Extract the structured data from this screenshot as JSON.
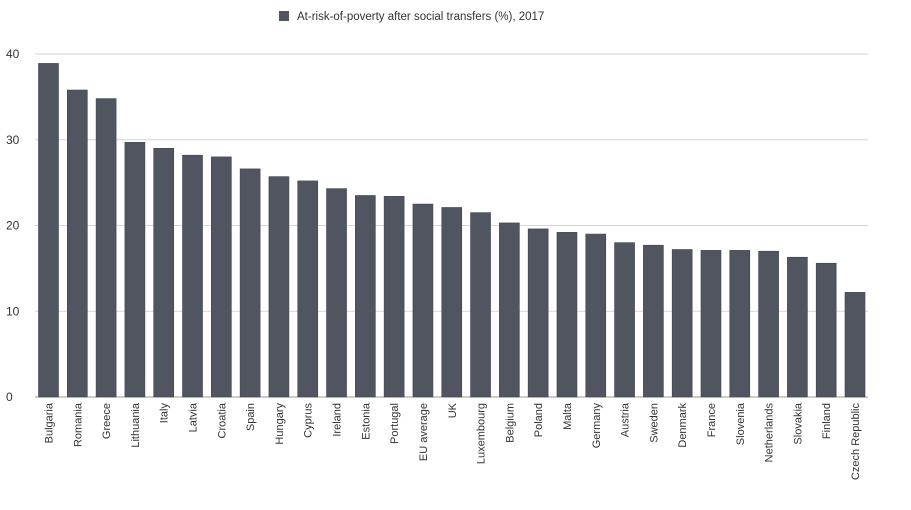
{
  "chart_data": {
    "type": "bar",
    "title": "",
    "xlabel": "",
    "ylabel": "",
    "ylim": [
      0,
      40
    ],
    "yticks": [
      0,
      10,
      20,
      30,
      40
    ],
    "grid": true,
    "legend_position": "top",
    "bar_color": "#51555f",
    "categories": [
      "Bulgaria",
      "Romania",
      "Greece",
      "Lithuania",
      "Italy",
      "Latvia",
      "Croatia",
      "Spain",
      "Hungary",
      "Cyprus",
      "Ireland",
      "Estonia",
      "Portugal",
      "EU average",
      "UK",
      "Luxembourg",
      "Belgium",
      "Poland",
      "Malta",
      "Germany",
      "Austria",
      "Sweden",
      "Denmark",
      "France",
      "Slovenia",
      "Netherlands",
      "Slovakia",
      "Finland",
      "Czech Republic"
    ],
    "series": [
      {
        "name": "At-risk-of-poverty after social transfers (%), 2017",
        "values": [
          38.9,
          35.8,
          34.8,
          29.7,
          29.0,
          28.2,
          28.0,
          26.6,
          25.7,
          25.2,
          24.3,
          23.5,
          23.4,
          22.5,
          22.1,
          21.5,
          20.3,
          19.6,
          19.2,
          19.0,
          18.0,
          17.7,
          17.2,
          17.1,
          17.1,
          17.0,
          16.3,
          15.6,
          12.2
        ]
      }
    ]
  }
}
